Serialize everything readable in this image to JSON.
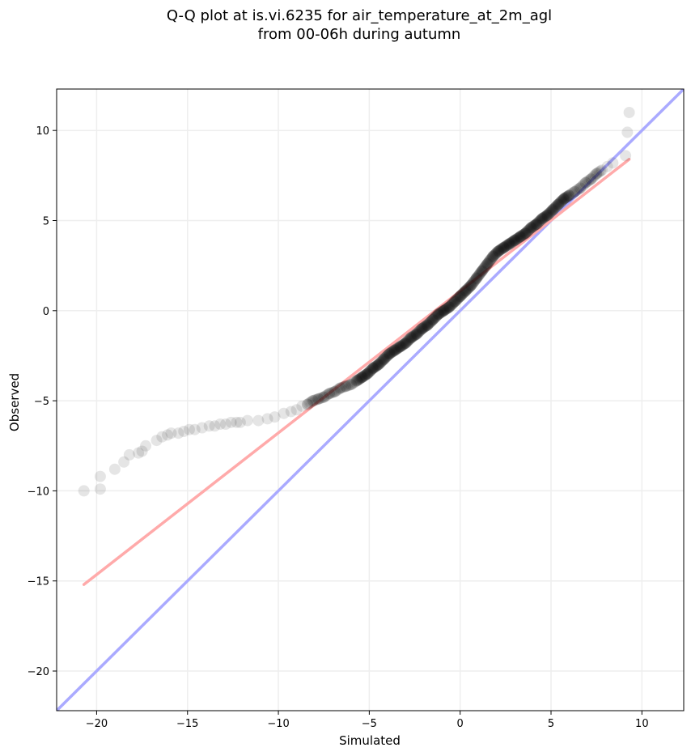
{
  "chart_data": {
    "type": "scatter",
    "title_lines": [
      "Q-Q plot at is.vi.6235 for air_temperature_at_2m_agl",
      "from 00-06h during autumn"
    ],
    "xlabel": "Simulated",
    "ylabel": "Observed",
    "xlim": [
      -22.2,
      12.3
    ],
    "ylim": [
      -22.2,
      12.3
    ],
    "xticks": [
      -20,
      -15,
      -10,
      -5,
      0,
      5,
      10
    ],
    "yticks": [
      -20,
      -15,
      -10,
      -5,
      0,
      5,
      10
    ],
    "xtick_labels": [
      "−20",
      "−15",
      "−10",
      "−5",
      "0",
      "5",
      "10"
    ],
    "ytick_labels": [
      "−20",
      "−15",
      "−10",
      "−5",
      "0",
      "5",
      "10"
    ],
    "grid": true,
    "colors": {
      "points": "#000000",
      "identity_line": "#aaaaff",
      "fit_line": "#ffaaaa",
      "grid": "#eeeeee"
    },
    "series": [
      {
        "kind": "points",
        "alpha": 0.1,
        "x": [
          -20.7,
          -19.8,
          -19.8,
          -19,
          -18.5,
          -18.2,
          -17.7,
          -17.5,
          -17.3,
          -16.7,
          -16.4,
          -16.1,
          -15.9,
          -15.5,
          -15.2,
          -14.9,
          -14.6,
          -14.2,
          -13.8,
          -13.5,
          -13.2,
          -12.9,
          -12.6,
          -12.3,
          -12.1,
          -11.7,
          -11.1,
          -10.6,
          -10.2,
          -9.7,
          -9.3,
          -9.0,
          -8.7,
          -8.4,
          -8.1,
          -7.8,
          -7.5,
          -7.2,
          -6.9,
          -6.6,
          -6.3,
          -6.0,
          -5.7,
          -5.4,
          -5.1,
          -4.8,
          -4.5,
          -4.2,
          -3.9,
          -3.6,
          -3.3,
          -3.0,
          -2.7,
          -2.4,
          -2.1,
          -1.8,
          -1.5,
          -1.2,
          -0.9,
          -0.6,
          -0.3,
          0.0,
          0.3,
          0.6,
          0.9,
          1.2,
          1.5,
          1.8,
          2.1,
          2.4,
          2.7,
          3.0,
          3.3,
          3.6,
          3.9,
          4.2,
          4.5,
          4.8,
          5.1,
          5.4,
          5.7,
          6.0,
          6.3,
          6.6,
          6.9,
          7.2,
          7.5,
          7.8,
          8.1,
          8.4,
          9.1,
          9.2,
          9.3
        ],
        "y": [
          -10.0,
          -9.9,
          -9.2,
          -8.8,
          -8.4,
          -8.0,
          -7.9,
          -7.8,
          -7.5,
          -7.2,
          -7.0,
          -6.9,
          -6.8,
          -6.8,
          -6.7,
          -6.6,
          -6.6,
          -6.5,
          -6.4,
          -6.4,
          -6.3,
          -6.3,
          -6.2,
          -6.2,
          -6.2,
          -6.1,
          -6.1,
          -6.0,
          -5.9,
          -5.7,
          -5.6,
          -5.5,
          -5.3,
          -5.2,
          -5.0,
          -4.9,
          -4.8,
          -4.6,
          -4.5,
          -4.3,
          -4.2,
          -4.1,
          -3.9,
          -3.7,
          -3.5,
          -3.2,
          -3.0,
          -2.7,
          -2.4,
          -2.2,
          -2.0,
          -1.8,
          -1.5,
          -1.3,
          -1.0,
          -0.8,
          -0.5,
          -0.2,
          0.0,
          0.2,
          0.5,
          0.8,
          1.1,
          1.4,
          1.8,
          2.2,
          2.6,
          3.0,
          3.3,
          3.5,
          3.7,
          3.9,
          4.1,
          4.3,
          4.6,
          4.8,
          5.1,
          5.3,
          5.6,
          5.9,
          6.2,
          6.4,
          6.6,
          6.8,
          7.1,
          7.3,
          7.6,
          7.8,
          8.0,
          8.2,
          8.6,
          9.9,
          11.0
        ]
      },
      {
        "kind": "line",
        "role": "identity",
        "x": [
          -22.2,
          12.3
        ],
        "y": [
          -22.2,
          12.3
        ]
      },
      {
        "kind": "line",
        "role": "fit",
        "x": [
          -20.7,
          9.3
        ],
        "y": [
          -15.2,
          8.4
        ]
      }
    ]
  }
}
